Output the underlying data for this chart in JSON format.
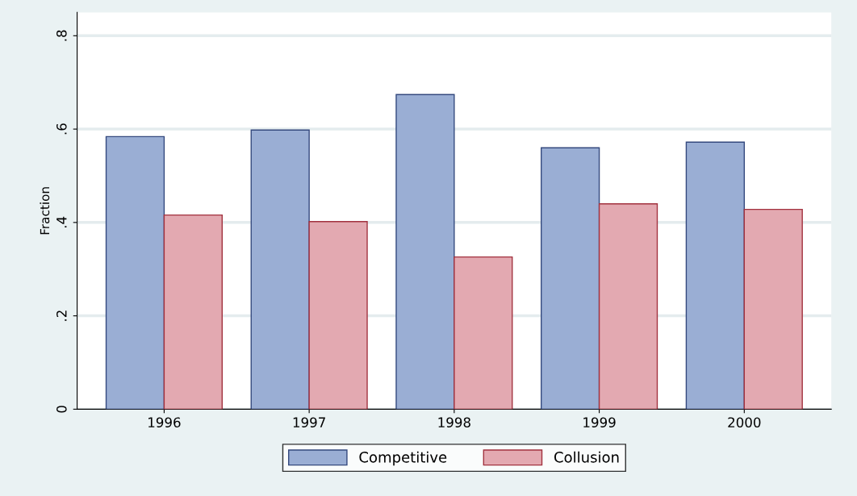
{
  "chart_data": {
    "type": "bar",
    "ylabel": "Fraction",
    "categories": [
      "1996",
      "1997",
      "1998",
      "1999",
      "2000"
    ],
    "series": [
      {
        "name": "Competitive",
        "color": "#9aaed4",
        "values": [
          0.584,
          0.598,
          0.674,
          0.56,
          0.572
        ]
      },
      {
        "name": "Collusion",
        "color": "#e3a9b1",
        "values": [
          0.416,
          0.402,
          0.326,
          0.44,
          0.428
        ]
      }
    ],
    "ylim": [
      0,
      0.85
    ],
    "yticks": [
      {
        "value": 0,
        "label": "0"
      },
      {
        "value": 0.2,
        "label": ".2"
      },
      {
        "value": 0.4,
        "label": ".4"
      },
      {
        "value": 0.6,
        "label": ".6"
      },
      {
        "value": 0.8,
        "label": ".8"
      }
    ],
    "grid": "y",
    "legend": "bottom"
  }
}
